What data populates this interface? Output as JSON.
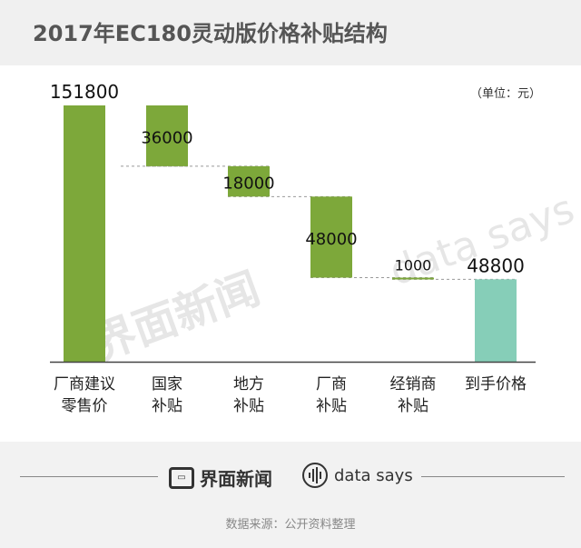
{
  "title": "2017年EC180灵动版价格补贴结构",
  "unit": "（单位：元）",
  "chart_data": {
    "type": "bar",
    "subtype": "waterfall",
    "categories": [
      [
        "厂商建议",
        "零售价"
      ],
      [
        "国家",
        "补贴"
      ],
      [
        "地方",
        "补贴"
      ],
      [
        "厂商",
        "补贴"
      ],
      [
        "经销商",
        "补贴"
      ],
      [
        "到手价格"
      ]
    ],
    "values": [
      151800,
      36000,
      18000,
      48000,
      1000,
      48800
    ],
    "value_labels": [
      "151800",
      "36000",
      "18000",
      "48000",
      "1000",
      "48800"
    ],
    "colors": [
      "#7da83a",
      "#7da83a",
      "#7da83a",
      "#7da83a",
      "#7da83a",
      "#86ceb8"
    ],
    "ylim": [
      0,
      151800
    ]
  },
  "watermark": {
    "brand_cn": "界面新闻",
    "brand_en": "data says"
  },
  "footer": {
    "brand_cn": "界面新闻",
    "brand_en": "data says",
    "source": "数据来源：公开资料整理"
  }
}
